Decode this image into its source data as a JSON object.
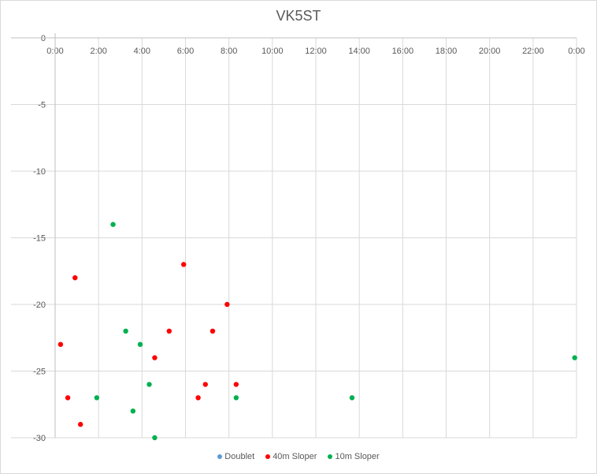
{
  "chart_data": {
    "type": "scatter",
    "title": "VK5ST",
    "xlabel": "",
    "ylabel": "",
    "x_axis": {
      "min_hours": 0,
      "max_hours": 24,
      "major_unit_hours": 2,
      "tick_labels": [
        "0:00",
        "2:00",
        "4:00",
        "6:00",
        "8:00",
        "10:00",
        "12:00",
        "14:00",
        "16:00",
        "18:00",
        "20:00",
        "22:00",
        "0:00"
      ],
      "position": "top"
    },
    "y_axis": {
      "ylim": [
        -30,
        0
      ],
      "major_unit": 5,
      "tick_labels": [
        "0",
        "-5",
        "-10",
        "-15",
        "-20",
        "-25",
        "-30"
      ]
    },
    "grid": true,
    "legend_position": "bottom",
    "series": [
      {
        "name": "Doublet",
        "color": "#5b9bd5",
        "x": [],
        "y": []
      },
      {
        "name": "40m Sloper",
        "color": "#ff0000",
        "x": [
          "0:15",
          "0:35",
          "0:55",
          "1:10",
          "4:35",
          "5:15",
          "5:55",
          "6:35",
          "6:55",
          "7:15",
          "7:55",
          "8:20"
        ],
        "y": [
          -23,
          -27,
          -18,
          -29,
          -24,
          -22,
          -17,
          -27,
          -26,
          -22,
          -20,
          -26
        ]
      },
      {
        "name": "10m Sloper",
        "color": "#00b050",
        "x": [
          "1:55",
          "2:40",
          "3:15",
          "3:35",
          "3:55",
          "4:20",
          "4:35",
          "8:20",
          "13:40",
          "23:55"
        ],
        "y": [
          -27,
          -14,
          -22,
          -28,
          -23,
          -26,
          -30,
          -27,
          -27,
          -24
        ]
      }
    ]
  }
}
